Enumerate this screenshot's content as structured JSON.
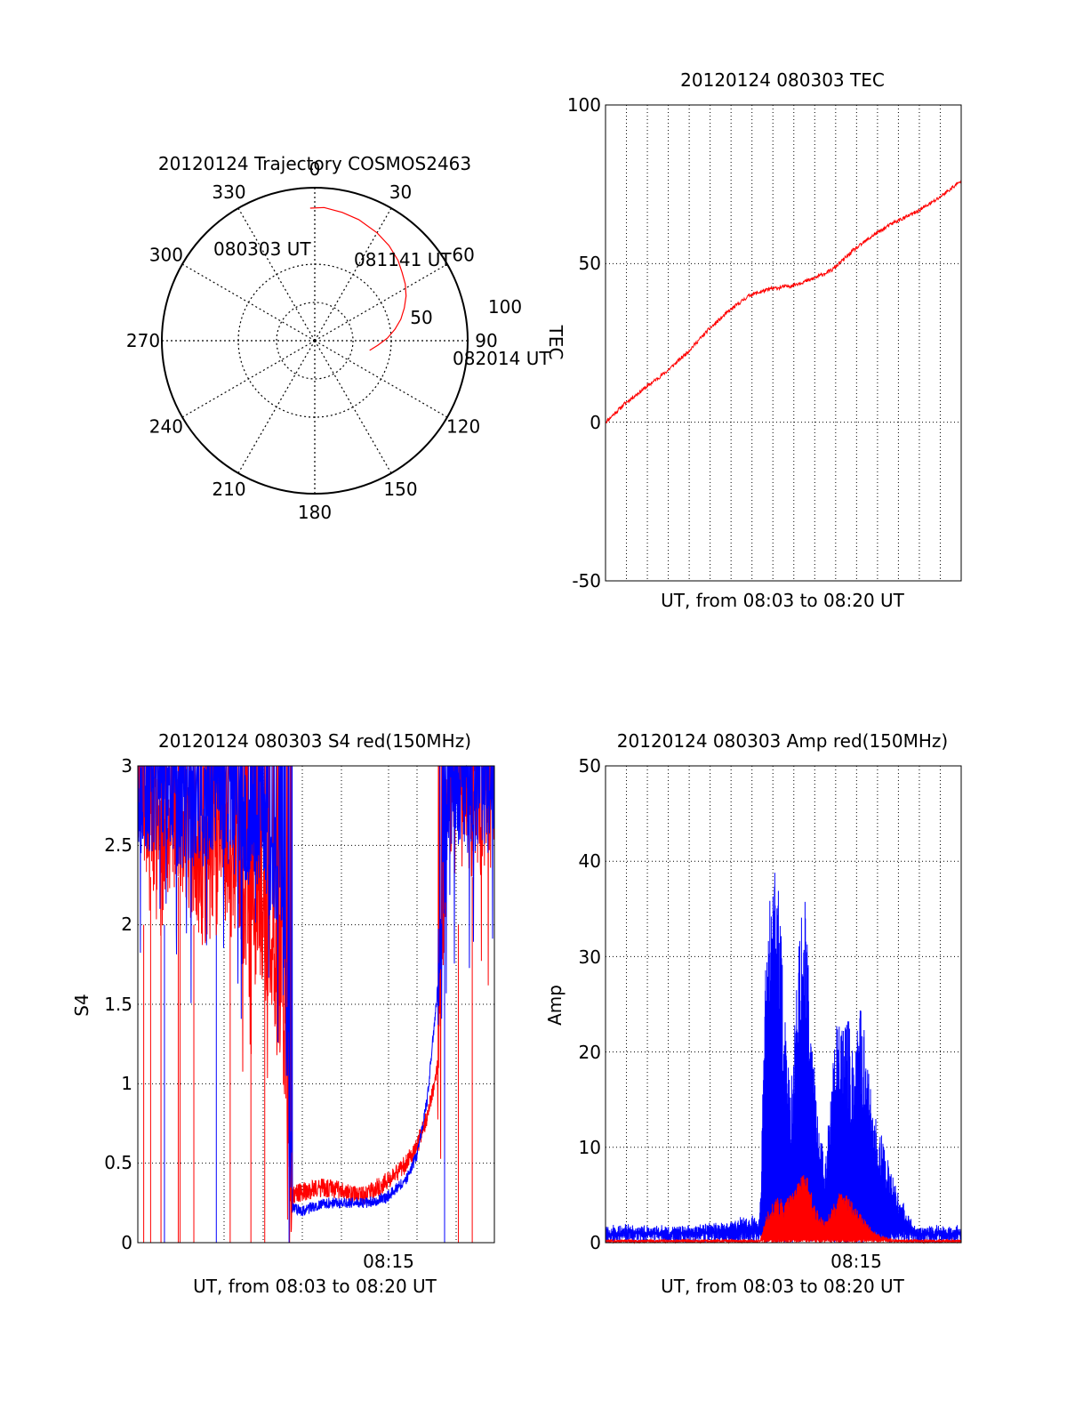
{
  "colors": {
    "red": "#ff0000",
    "blue": "#0000ff",
    "axis": "#000000",
    "grid": "#000000",
    "background": "#ffffff"
  },
  "chart_data": [
    {
      "type": "polar",
      "title": "20120124 Trajectory COSMOS2463",
      "angle_tick_labels": [
        "0",
        "30",
        "60",
        "90",
        "120",
        "150",
        "180",
        "210",
        "240",
        "270",
        "300",
        "330"
      ],
      "radius_tick_labels": [
        "50",
        "100"
      ],
      "radius_max": 100,
      "start_label": "080303 UT",
      "mid_label": "081141 UT",
      "end_label": "082014 UT",
      "track": {
        "azimuth_deg": [
          -2,
          4,
          12,
          20,
          30,
          38,
          46,
          52,
          58,
          64,
          70,
          76,
          82,
          88,
          94,
          100
        ],
        "elevation_deg": [
          12,
          11.5,
          12.8,
          14.2,
          16.7,
          19,
          21.9,
          24.8,
          27.2,
          30.2,
          33.9,
          37.8,
          42.4,
          47.2,
          52.7,
          57.2
        ]
      }
    },
    {
      "type": "line",
      "title": "20120124 080303 TEC",
      "xlabel": "UT, from 08:03 to 08:20 UT",
      "ylabel": "TEC",
      "xlim": [
        "08:03",
        "08:20"
      ],
      "ylim": [
        -50,
        100
      ],
      "y_ticks": [
        "100",
        "50",
        "0",
        "-50"
      ],
      "grid": true,
      "series": [
        {
          "color": "red",
          "x": [
            "08:03:03",
            "08:04:00",
            "08:05:00",
            "08:06:00",
            "08:07:00",
            "08:08:00",
            "08:09:00",
            "08:10:00",
            "08:11:00",
            "08:12:00",
            "08:13:00",
            "08:14:00",
            "08:15:00",
            "08:16:00",
            "08:17:00",
            "08:18:00",
            "08:19:00",
            "08:20:14"
          ],
          "y": [
            0,
            6,
            11,
            16,
            22,
            29,
            35,
            40,
            42,
            43,
            45,
            48,
            54,
            59,
            63,
            66,
            70,
            76
          ]
        }
      ]
    },
    {
      "type": "line",
      "title": "20120124 080303 S4 red(150MHz)",
      "xlabel": "UT, from 08:03 to 08:20 UT",
      "ylabel": "S4",
      "xlim": [
        "08:03",
        "08:20"
      ],
      "ylim": [
        0,
        3
      ],
      "y_ticks": [
        "3",
        "2.5",
        "2",
        "1.5",
        "1",
        "0.5",
        "0"
      ],
      "x_tick_label": "08:15",
      "grid": true,
      "series": [
        {
          "color": "red",
          "x": [
            "08:03:03",
            "08:04:00",
            "08:05:00",
            "08:06:00",
            "08:07:00",
            "08:08:00",
            "08:09:00",
            "08:10:00",
            "08:10:30",
            "08:11:00",
            "08:12:00",
            "08:13:00",
            "08:14:00",
            "08:15:00",
            "08:16:00",
            "08:16:30",
            "08:17:00",
            "08:17:30",
            "08:18:00",
            "08:19:00",
            "08:20:14"
          ],
          "y": [
            2.9,
            2.6,
            2.7,
            2.3,
            2.4,
            2.2,
            2.0,
            1.6,
            0.3,
            0.32,
            0.35,
            0.32,
            0.3,
            0.38,
            0.5,
            0.6,
            0.8,
            1.1,
            2.9,
            2.7,
            2.8
          ]
        },
        {
          "color": "blue",
          "x": [
            "08:03:03",
            "08:04:00",
            "08:05:00",
            "08:06:00",
            "08:07:00",
            "08:08:00",
            "08:09:00",
            "08:10:00",
            "08:10:30",
            "08:11:00",
            "08:12:00",
            "08:13:00",
            "08:14:00",
            "08:15:00",
            "08:16:00",
            "08:16:30",
            "08:17:00",
            "08:17:30",
            "08:18:00",
            "08:19:00",
            "08:20:14"
          ],
          "y": [
            2.8,
            2.8,
            2.7,
            2.7,
            2.8,
            2.6,
            2.6,
            2.2,
            0.22,
            0.2,
            0.25,
            0.25,
            0.25,
            0.28,
            0.4,
            0.55,
            0.9,
            1.6,
            2.8,
            2.8,
            2.8
          ]
        }
      ]
    },
    {
      "type": "line",
      "title": "20120124 080303 Amp red(150MHz)",
      "xlabel": "UT, from 08:03 to 08:20 UT",
      "ylabel": "Amp",
      "xlim": [
        "08:03",
        "08:20"
      ],
      "ylim": [
        0,
        50
      ],
      "y_ticks": [
        "50",
        "40",
        "30",
        "20",
        "10",
        "0"
      ],
      "x_tick_label": "08:15",
      "grid": true,
      "series": [
        {
          "color": "blue",
          "x": [
            "08:03:03",
            "08:05:00",
            "08:07:00",
            "08:10:30",
            "08:10:50",
            "08:11:20",
            "08:11:40",
            "08:12:00",
            "08:12:20",
            "08:12:40",
            "08:13:00",
            "08:13:20",
            "08:13:40",
            "08:14:00",
            "08:14:20",
            "08:14:40",
            "08:15:00",
            "08:15:20",
            "08:15:40",
            "08:16:00",
            "08:16:30",
            "08:17:00",
            "08:17:30",
            "08:18:00",
            "08:19:00",
            "08:20:14"
          ],
          "y": [
            1,
            1,
            1,
            2,
            33,
            43,
            25,
            15,
            30,
            37,
            22,
            12,
            8,
            18,
            24,
            26,
            20,
            25,
            20,
            14,
            10,
            6,
            3,
            1,
            1,
            1
          ]
        },
        {
          "color": "red",
          "x": [
            "08:03:03",
            "08:05:00",
            "08:07:00",
            "08:10:30",
            "08:10:50",
            "08:11:20",
            "08:11:40",
            "08:12:00",
            "08:12:20",
            "08:12:40",
            "08:13:00",
            "08:13:20",
            "08:13:40",
            "08:14:00",
            "08:14:20",
            "08:14:40",
            "08:15:00",
            "08:15:20",
            "08:15:40",
            "08:16:00",
            "08:16:30",
            "08:17:00",
            "08:17:30",
            "08:18:00",
            "08:19:00",
            "08:20:14"
          ],
          "y": [
            0,
            0,
            0,
            0,
            3,
            5,
            4,
            5,
            6,
            8,
            5,
            3,
            2,
            4,
            5,
            5,
            4,
            3,
            2,
            1,
            0.5,
            0,
            0,
            0,
            0,
            0
          ]
        }
      ]
    }
  ]
}
